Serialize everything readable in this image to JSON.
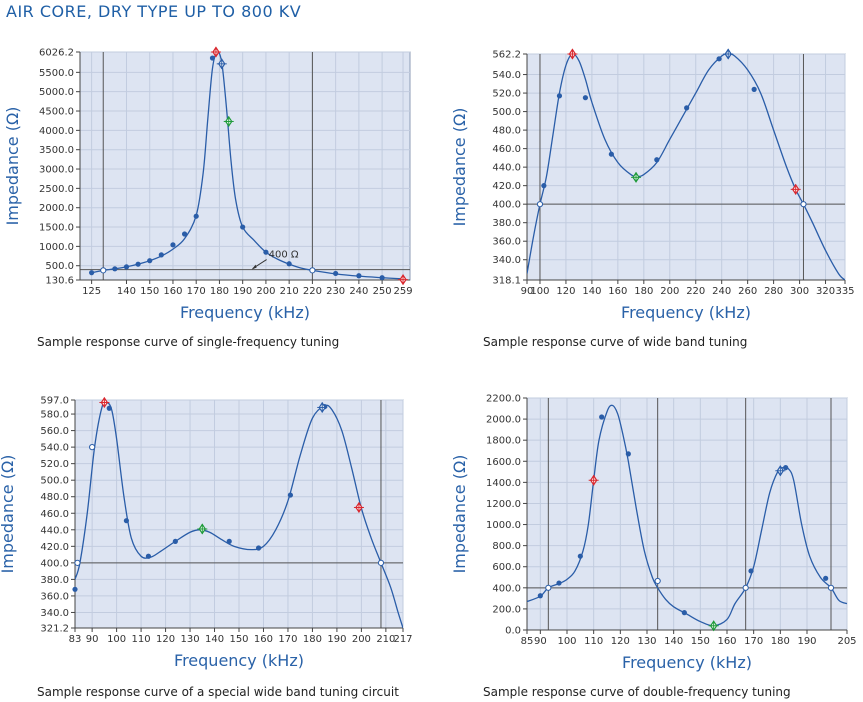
{
  "page_title": "AIR CORE, DRY TYPE UP TO 800 KV",
  "colors": {
    "curve": "#2a5da8",
    "marker_red": "#d9272e",
    "marker_green": "#1f9a3a",
    "marker_blue": "#2a5da8",
    "text": "#2a62a8"
  },
  "chart_data": [
    {
      "type": "line",
      "caption": "Sample response curve of single-frequency tuning",
      "xlabel": "Frequency (kHz)",
      "ylabel": "Impedance (Ω)",
      "xlim": [
        120,
        262
      ],
      "ylim": [
        130.6,
        6026.2
      ],
      "x_ticks": [
        125,
        140,
        150,
        160,
        170,
        180,
        190,
        200,
        210,
        220,
        230,
        240,
        250,
        259
      ],
      "y_ticks": [
        130.6,
        500.0,
        1000.0,
        1500.0,
        2000.0,
        2500.0,
        3000.0,
        3500.0,
        4000.0,
        4500.0,
        5000.0,
        5500.0,
        6026.2
      ],
      "y_tick_labels": [
        "130.6",
        "500.0",
        "1000.0",
        "1500.0",
        "2000.0",
        "2500.0",
        "3000.0",
        "3500.0",
        "4000.0",
        "4500.0",
        "5000.0",
        "5500.0",
        "6026.2"
      ],
      "vlines": [
        130,
        220
      ],
      "hline": 400,
      "annotation": "400 Ω",
      "annotation_point": [
        196,
        400
      ],
      "curve": [
        [
          125,
          320
        ],
        [
          130,
          380
        ],
        [
          135,
          420
        ],
        [
          140,
          470
        ],
        [
          145,
          540
        ],
        [
          150,
          630
        ],
        [
          155,
          750
        ],
        [
          160,
          930
        ],
        [
          165,
          1200
        ],
        [
          170,
          1800
        ],
        [
          173,
          2900
        ],
        [
          175,
          4300
        ],
        [
          177,
          5600
        ],
        [
          179,
          6026.2
        ],
        [
          181,
          5750
        ],
        [
          183,
          4600
        ],
        [
          185,
          3200
        ],
        [
          187,
          2200
        ],
        [
          190,
          1500
        ],
        [
          195,
          1150
        ],
        [
          200,
          850
        ],
        [
          205,
          670
        ],
        [
          210,
          540
        ],
        [
          215,
          440
        ],
        [
          220,
          380
        ],
        [
          230,
          290
        ],
        [
          240,
          230
        ],
        [
          250,
          190
        ],
        [
          259,
          160
        ]
      ],
      "points": [
        [
          125,
          320
        ],
        [
          130,
          380
        ],
        [
          135,
          420
        ],
        [
          140,
          470
        ],
        [
          145,
          540
        ],
        [
          150,
          630
        ],
        [
          155,
          780
        ],
        [
          160,
          1040
        ],
        [
          165,
          1320
        ],
        [
          170,
          1780
        ],
        [
          177,
          5870
        ],
        [
          190,
          1500
        ],
        [
          200,
          850
        ],
        [
          210,
          550
        ],
        [
          220,
          380
        ],
        [
          230,
          300
        ],
        [
          240,
          240
        ],
        [
          250,
          190
        ]
      ],
      "markers": [
        {
          "x": 178.5,
          "y": 6026.2,
          "color": "red"
        },
        {
          "x": 181,
          "y": 5720,
          "color": "blue"
        },
        {
          "x": 184,
          "y": 4230,
          "color": "green"
        },
        {
          "x": 259,
          "y": 140,
          "color": "red"
        },
        {
          "x": 130,
          "y": 380,
          "color": "hollow"
        },
        {
          "x": 220,
          "y": 380,
          "color": "hollow"
        }
      ]
    },
    {
      "type": "line",
      "caption": "Sample response curve of wide band tuning",
      "xlabel": "Frequency (kHz)",
      "ylabel": "Impedance (Ω)",
      "xlim": [
        90,
        335
      ],
      "ylim": [
        318.1,
        562.2
      ],
      "x_ticks": [
        90,
        100,
        120,
        140,
        160,
        180,
        200,
        220,
        240,
        260,
        280,
        300,
        320,
        335
      ],
      "x_tick_labels": [
        "90",
        "100",
        "120",
        "140",
        "160",
        "180",
        "200",
        "220",
        "240",
        "260",
        "280",
        "300",
        "320",
        "335"
      ],
      "y_ticks": [
        318.1,
        340.0,
        360.0,
        380.0,
        400.0,
        420.0,
        440.0,
        460.0,
        480.0,
        500.0,
        520.0,
        540.0,
        562.2
      ],
      "y_tick_labels": [
        "318.1",
        "340.0",
        "360.0",
        "380.0",
        "400.0",
        "420.0",
        "440.0",
        "460.0",
        "480.0",
        "500.0",
        "520.0",
        "540.0",
        "562.2"
      ],
      "vlines": [
        100,
        303
      ],
      "hline": 400,
      "curve": [
        [
          90,
          325
        ],
        [
          95,
          365
        ],
        [
          100,
          400
        ],
        [
          105,
          430
        ],
        [
          110,
          475
        ],
        [
          115,
          520
        ],
        [
          120,
          550
        ],
        [
          125,
          562.2
        ],
        [
          130,
          555
        ],
        [
          135,
          535
        ],
        [
          140,
          510
        ],
        [
          150,
          470
        ],
        [
          160,
          445
        ],
        [
          170,
          432
        ],
        [
          175,
          430
        ],
        [
          180,
          432
        ],
        [
          190,
          445
        ],
        [
          200,
          470
        ],
        [
          210,
          495
        ],
        [
          220,
          520
        ],
        [
          230,
          545
        ],
        [
          240,
          560
        ],
        [
          245,
          562.2
        ],
        [
          250,
          560
        ],
        [
          260,
          545
        ],
        [
          270,
          520
        ],
        [
          280,
          480
        ],
        [
          290,
          440
        ],
        [
          297,
          416
        ],
        [
          303,
          400
        ],
        [
          310,
          380
        ],
        [
          320,
          350
        ],
        [
          330,
          325
        ],
        [
          335,
          318.1
        ]
      ],
      "points": [
        [
          103,
          420
        ],
        [
          115,
          517
        ],
        [
          135,
          515
        ],
        [
          155,
          454
        ],
        [
          190,
          448
        ],
        [
          213,
          504
        ],
        [
          238,
          557
        ],
        [
          265,
          524
        ]
      ],
      "markers": [
        {
          "x": 100,
          "y": 400,
          "color": "hollow"
        },
        {
          "x": 125,
          "y": 562.2,
          "color": "red"
        },
        {
          "x": 174,
          "y": 429,
          "color": "green"
        },
        {
          "x": 245,
          "y": 562.2,
          "color": "blue"
        },
        {
          "x": 297,
          "y": 416,
          "color": "red"
        },
        {
          "x": 303,
          "y": 400,
          "color": "hollow"
        }
      ]
    },
    {
      "type": "line",
      "caption": "Sample response curve of a special wide band tuning circuit",
      "xlabel": "Frequency (kHz)",
      "ylabel": "Impedance (Ω)",
      "xlim": [
        83,
        217
      ],
      "ylim": [
        321.2,
        597.0
      ],
      "x_ticks": [
        83,
        90,
        100,
        110,
        120,
        130,
        140,
        150,
        160,
        170,
        180,
        190,
        200,
        210,
        217
      ],
      "x_tick_labels": [
        "83",
        "90",
        "100",
        "110",
        "120",
        "130",
        "140",
        "150",
        "160",
        "170",
        "180",
        "190",
        "200",
        "210",
        "217"
      ],
      "y_ticks": [
        321.2,
        340.0,
        360.0,
        380.0,
        400.0,
        420.0,
        440.0,
        460.0,
        480.0,
        500.0,
        520.0,
        540.0,
        560.0,
        580.0,
        597.0
      ],
      "y_tick_labels": [
        "321.2",
        "340.0",
        "360.0",
        "380.0",
        "400.0",
        "420.0",
        "440.0",
        "460.0",
        "480.0",
        "500.0",
        "520.0",
        "540.0",
        "560.0",
        "580.0",
        "597.0"
      ],
      "vlines": [
        83,
        208
      ],
      "hline": 400,
      "curve": [
        [
          83,
          380
        ],
        [
          85,
          400
        ],
        [
          88,
          460
        ],
        [
          91,
          540
        ],
        [
          94,
          588
        ],
        [
          96,
          594
        ],
        [
          98,
          585
        ],
        [
          100,
          550
        ],
        [
          103,
          480
        ],
        [
          106,
          430
        ],
        [
          110,
          408
        ],
        [
          114,
          407
        ],
        [
          118,
          414
        ],
        [
          124,
          426
        ],
        [
          130,
          437
        ],
        [
          134,
          440
        ],
        [
          138,
          437
        ],
        [
          143,
          428
        ],
        [
          148,
          420
        ],
        [
          155,
          416
        ],
        [
          160,
          420
        ],
        [
          165,
          440
        ],
        [
          170,
          475
        ],
        [
          175,
          530
        ],
        [
          180,
          575
        ],
        [
          185,
          590
        ],
        [
          188,
          585
        ],
        [
          192,
          560
        ],
        [
          196,
          515
        ],
        [
          200,
          466
        ],
        [
          204,
          430
        ],
        [
          208,
          400
        ],
        [
          212,
          370
        ],
        [
          215,
          340
        ],
        [
          217,
          321.2
        ]
      ],
      "points": [
        [
          83,
          368
        ],
        [
          97,
          587
        ],
        [
          104,
          451
        ],
        [
          113,
          408
        ],
        [
          124,
          426
        ],
        [
          146,
          426
        ],
        [
          158,
          418
        ],
        [
          171,
          482
        ],
        [
          185,
          589
        ]
      ],
      "markers": [
        {
          "x": 84,
          "y": 400,
          "color": "hollow"
        },
        {
          "x": 90,
          "y": 540,
          "color": "hollow"
        },
        {
          "x": 95,
          "y": 594,
          "color": "red"
        },
        {
          "x": 135,
          "y": 441,
          "color": "green"
        },
        {
          "x": 184,
          "y": 588,
          "color": "blue"
        },
        {
          "x": 199,
          "y": 467,
          "color": "red"
        },
        {
          "x": 208,
          "y": 400,
          "color": "hollow"
        }
      ]
    },
    {
      "type": "line",
      "caption": "Sample response curve of double-frequency tuning",
      "xlabel": "Frequency (kHz)",
      "ylabel": "Impedance (Ω)",
      "xlim": [
        85,
        205
      ],
      "ylim": [
        0.0,
        2200.0
      ],
      "x_ticks": [
        85,
        90,
        100,
        110,
        120,
        130,
        140,
        150,
        160,
        170,
        180,
        190,
        205
      ],
      "x_tick_labels": [
        "85",
        "90",
        "100",
        "110",
        "120",
        "130",
        "140",
        "150",
        "160",
        "170",
        "180",
        "190",
        "205"
      ],
      "y_ticks": [
        0.0,
        200.0,
        400.0,
        600.0,
        800.0,
        1000.0,
        1200.0,
        1400.0,
        1600.0,
        1800.0,
        2000.0,
        2200.0
      ],
      "y_tick_labels": [
        "0.0",
        "200.0",
        "400.0",
        "600.0",
        "800.0",
        "1000.0",
        "1200.0",
        "1400.0",
        "1600.0",
        "1800.0",
        "2000.0",
        "2200.0"
      ],
      "vlines": [
        93,
        134,
        167,
        199
      ],
      "hline": 400,
      "curve": [
        [
          85,
          270
        ],
        [
          90,
          320
        ],
        [
          93,
          400
        ],
        [
          97,
          440
        ],
        [
          100,
          480
        ],
        [
          103,
          560
        ],
        [
          106,
          750
        ],
        [
          108,
          1000
        ],
        [
          110,
          1420
        ],
        [
          112,
          1800
        ],
        [
          115,
          2070
        ],
        [
          117,
          2130
        ],
        [
          119,
          2050
        ],
        [
          121,
          1850
        ],
        [
          123,
          1600
        ],
        [
          126,
          1150
        ],
        [
          129,
          750
        ],
        [
          132,
          500
        ],
        [
          134,
          400
        ],
        [
          137,
          290
        ],
        [
          140,
          220
        ],
        [
          145,
          150
        ],
        [
          150,
          80
        ],
        [
          155,
          40
        ],
        [
          160,
          100
        ],
        [
          163,
          250
        ],
        [
          167,
          400
        ],
        [
          170,
          600
        ],
        [
          173,
          950
        ],
        [
          176,
          1300
        ],
        [
          179,
          1500
        ],
        [
          181,
          1540
        ],
        [
          183,
          1530
        ],
        [
          185,
          1420
        ],
        [
          188,
          1000
        ],
        [
          191,
          700
        ],
        [
          195,
          500
        ],
        [
          199,
          400
        ],
        [
          202,
          280
        ],
        [
          205,
          250
        ]
      ],
      "points": [
        [
          90,
          325
        ],
        [
          97,
          445
        ],
        [
          105,
          700
        ],
        [
          113,
          2020
        ],
        [
          123,
          1670
        ],
        [
          144,
          165
        ],
        [
          169,
          560
        ],
        [
          182,
          1540
        ],
        [
          197,
          490
        ]
      ],
      "markers": [
        {
          "x": 93,
          "y": 400,
          "color": "hollow"
        },
        {
          "x": 110,
          "y": 1420,
          "color": "red"
        },
        {
          "x": 134,
          "y": 465,
          "color": "hollow"
        },
        {
          "x": 155,
          "y": 40,
          "color": "green"
        },
        {
          "x": 167,
          "y": 400,
          "color": "hollow"
        },
        {
          "x": 180,
          "y": 1510,
          "color": "blue"
        },
        {
          "x": 199,
          "y": 400,
          "color": "hollow"
        }
      ]
    }
  ]
}
